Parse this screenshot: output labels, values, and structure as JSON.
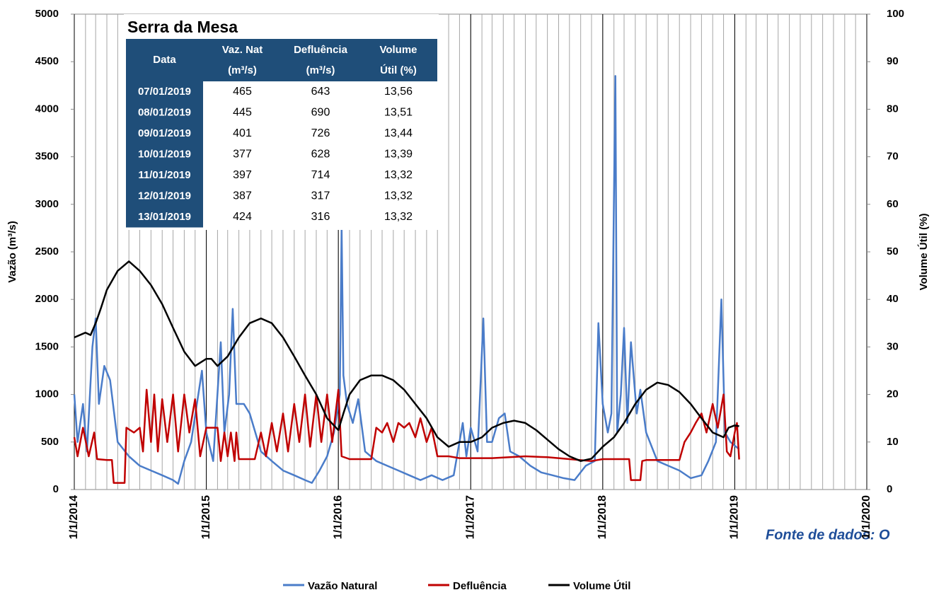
{
  "chart_data": {
    "type": "line",
    "y_label": "Vazão (m³/s)",
    "y2_label": "Volume Útil (%)",
    "source": "Fonte de dados: O",
    "xlim": [
      "2014-01-01",
      "2020-01-01"
    ],
    "xticks": [
      {
        "value": "2014-01-01",
        "label": "1/1/2014"
      },
      {
        "value": "2015-01-01",
        "label": "1/1/2015"
      },
      {
        "value": "2016-01-01",
        "label": "1/1/2016"
      },
      {
        "value": "2017-01-01",
        "label": "1/1/2017"
      },
      {
        "value": "2018-01-01",
        "label": "1/1/2018"
      },
      {
        "value": "2019-01-01",
        "label": "1/1/2019"
      },
      {
        "value": "2020-01-01",
        "label": "1/1/2020"
      }
    ],
    "ylim": [
      0,
      5000
    ],
    "yticks": [
      0,
      500,
      1000,
      1500,
      2000,
      2500,
      3000,
      3500,
      4000,
      4500,
      5000
    ],
    "y2lim": [
      0,
      100
    ],
    "y2ticks": [
      0,
      10,
      20,
      30,
      40,
      50,
      60,
      70,
      80,
      90,
      100
    ],
    "series": [
      {
        "name": "Vazão Natural",
        "color": "#4a7cc9",
        "x": [
          "2014-01-01",
          "2014-01-10",
          "2014-01-25",
          "2014-02-05",
          "2014-02-20",
          "2014-03-01",
          "2014-03-10",
          "2014-03-25",
          "2014-04-10",
          "2014-05-01",
          "2014-06-01",
          "2014-07-01",
          "2014-08-01",
          "2014-09-01",
          "2014-10-01",
          "2014-10-15",
          "2014-11-01",
          "2014-11-20",
          "2014-12-10",
          "2014-12-20",
          "2015-01-01",
          "2015-01-20",
          "2015-02-10",
          "2015-02-20",
          "2015-03-05",
          "2015-03-15",
          "2015-03-25",
          "2015-04-15",
          "2015-05-01",
          "2015-06-01",
          "2015-07-01",
          "2015-08-01",
          "2015-09-01",
          "2015-10-01",
          "2015-10-20",
          "2015-11-10",
          "2015-12-01",
          "2015-12-20",
          "2016-01-05",
          "2016-01-10",
          "2016-01-15",
          "2016-01-25",
          "2016-02-10",
          "2016-02-25",
          "2016-03-15",
          "2016-04-15",
          "2016-05-15",
          "2016-06-15",
          "2016-07-15",
          "2016-08-15",
          "2016-09-15",
          "2016-10-15",
          "2016-11-15",
          "2016-12-10",
          "2016-12-20",
          "2017-01-01",
          "2017-01-20",
          "2017-02-05",
          "2017-02-15",
          "2017-03-01",
          "2017-03-20",
          "2017-04-05",
          "2017-04-20",
          "2017-05-15",
          "2017-06-15",
          "2017-07-15",
          "2017-08-15",
          "2017-09-15",
          "2017-10-15",
          "2017-11-15",
          "2017-12-10",
          "2017-12-20",
          "2018-01-01",
          "2018-01-15",
          "2018-01-25",
          "2018-02-05",
          "2018-02-10",
          "2018-02-20",
          "2018-03-01",
          "2018-03-10",
          "2018-03-20",
          "2018-04-05",
          "2018-04-15",
          "2018-05-01",
          "2018-06-01",
          "2018-07-01",
          "2018-08-01",
          "2018-09-01",
          "2018-10-01",
          "2018-10-20",
          "2018-11-10",
          "2018-11-25",
          "2018-12-05",
          "2018-12-20",
          "2019-01-13"
        ],
        "values": [
          1000,
          500,
          900,
          400,
          1500,
          1800,
          900,
          1300,
          1150,
          500,
          350,
          250,
          200,
          150,
          100,
          60,
          300,
          500,
          1000,
          1250,
          600,
          300,
          1550,
          600,
          1000,
          1900,
          900,
          900,
          800,
          400,
          300,
          200,
          150,
          100,
          70,
          200,
          350,
          600,
          1000,
          2750,
          1200,
          900,
          700,
          950,
          400,
          300,
          250,
          200,
          150,
          100,
          150,
          100,
          150,
          700,
          350,
          650,
          400,
          1800,
          500,
          500,
          750,
          800,
          400,
          350,
          250,
          180,
          150,
          120,
          100,
          250,
          300,
          1750,
          900,
          600,
          800,
          4350,
          600,
          1000,
          1700,
          700,
          1550,
          800,
          1050,
          600,
          300,
          250,
          200,
          120,
          150,
          300,
          500,
          2000,
          600,
          500,
          424
        ]
      },
      {
        "name": "Defluência",
        "color": "#c00000",
        "x": [
          "2014-01-01",
          "2014-01-10",
          "2014-01-25",
          "2014-02-10",
          "2014-02-25",
          "2014-03-05",
          "2014-04-01",
          "2014-04-15",
          "2014-04-20",
          "2014-05-20",
          "2014-05-25",
          "2014-06-15",
          "2014-07-01",
          "2014-07-10",
          "2014-07-20",
          "2014-08-01",
          "2014-08-10",
          "2014-08-20",
          "2014-09-01",
          "2014-09-15",
          "2014-10-01",
          "2014-10-15",
          "2014-11-01",
          "2014-11-15",
          "2014-12-01",
          "2014-12-15",
          "2015-01-01",
          "2015-01-15",
          "2015-02-01",
          "2015-02-10",
          "2015-02-20",
          "2015-03-01",
          "2015-03-10",
          "2015-03-20",
          "2015-03-25",
          "2015-04-01",
          "2015-05-15",
          "2015-06-01",
          "2015-06-15",
          "2015-07-01",
          "2015-07-15",
          "2015-08-01",
          "2015-08-15",
          "2015-09-01",
          "2015-09-15",
          "2015-10-01",
          "2015-10-15",
          "2015-11-01",
          "2015-11-15",
          "2015-12-01",
          "2015-12-15",
          "2016-01-01",
          "2016-01-10",
          "2016-02-01",
          "2016-03-01",
          "2016-04-01",
          "2016-04-15",
          "2016-05-01",
          "2016-05-15",
          "2016-06-01",
          "2016-06-15",
          "2016-07-01",
          "2016-07-15",
          "2016-08-01",
          "2016-08-15",
          "2016-09-01",
          "2016-09-15",
          "2016-10-01",
          "2016-11-01",
          "2016-12-01",
          "2017-03-01",
          "2017-06-01",
          "2017-08-01",
          "2017-12-01",
          "2018-01-01",
          "2018-03-15",
          "2018-03-20",
          "2018-04-15",
          "2018-04-20",
          "2018-05-01",
          "2018-08-01",
          "2018-08-15",
          "2018-09-01",
          "2018-09-15",
          "2018-10-01",
          "2018-10-15",
          "2018-11-01",
          "2018-11-15",
          "2018-12-01",
          "2018-12-10",
          "2018-12-20",
          "2019-01-01",
          "2019-01-07",
          "2019-01-13"
        ],
        "values": [
          550,
          350,
          650,
          350,
          600,
          320,
          310,
          310,
          70,
          70,
          650,
          600,
          650,
          400,
          1050,
          500,
          1000,
          400,
          950,
          500,
          1000,
          400,
          1000,
          600,
          950,
          350,
          650,
          650,
          650,
          300,
          600,
          350,
          600,
          300,
          600,
          320,
          320,
          600,
          350,
          700,
          400,
          800,
          400,
          900,
          500,
          1000,
          450,
          1000,
          500,
          1000,
          500,
          1050,
          350,
          320,
          320,
          320,
          650,
          600,
          700,
          500,
          700,
          650,
          700,
          550,
          750,
          500,
          650,
          350,
          350,
          330,
          330,
          350,
          340,
          300,
          320,
          320,
          100,
          100,
          300,
          310,
          310,
          500,
          600,
          700,
          800,
          600,
          900,
          650,
          1000,
          400,
          350,
          600,
          700,
          316
        ]
      },
      {
        "name": "Volume Útil",
        "color": "#000000",
        "axis": "y2",
        "x": [
          "2014-01-01",
          "2014-02-01",
          "2014-02-15",
          "2014-03-01",
          "2014-03-15",
          "2014-04-01",
          "2014-05-01",
          "2014-06-01",
          "2014-07-01",
          "2014-08-01",
          "2014-09-01",
          "2014-10-01",
          "2014-11-01",
          "2014-12-01",
          "2015-01-01",
          "2015-01-15",
          "2015-02-01",
          "2015-03-01",
          "2015-04-01",
          "2015-05-01",
          "2015-06-01",
          "2015-07-01",
          "2015-08-01",
          "2015-09-01",
          "2015-10-01",
          "2015-11-01",
          "2015-12-01",
          "2016-01-01",
          "2016-01-15",
          "2016-02-01",
          "2016-03-01",
          "2016-04-01",
          "2016-05-01",
          "2016-06-01",
          "2016-07-01",
          "2016-08-01",
          "2016-09-01",
          "2016-10-01",
          "2016-11-01",
          "2016-12-01",
          "2017-01-01",
          "2017-02-01",
          "2017-03-01",
          "2017-04-01",
          "2017-05-01",
          "2017-06-01",
          "2017-07-01",
          "2017-08-01",
          "2017-09-01",
          "2017-10-01",
          "2017-11-01",
          "2017-12-01",
          "2018-01-01",
          "2018-02-01",
          "2018-03-01",
          "2018-04-01",
          "2018-05-01",
          "2018-06-01",
          "2018-07-01",
          "2018-08-01",
          "2018-09-01",
          "2018-10-01",
          "2018-11-01",
          "2018-12-01",
          "2018-12-15",
          "2019-01-01",
          "2019-01-13"
        ],
        "values": [
          32,
          33,
          32.5,
          35,
          38,
          42,
          46,
          48,
          46,
          43,
          39,
          34,
          29,
          26,
          27.5,
          27.5,
          26,
          28,
          32,
          35,
          36,
          35,
          32,
          28,
          24,
          20,
          15,
          12.5,
          16,
          20,
          23,
          24,
          24,
          23,
          21,
          18,
          15,
          11,
          9,
          10,
          10,
          11,
          13,
          14,
          14.5,
          14,
          12.5,
          10.5,
          8.5,
          7,
          6,
          6.5,
          9,
          11,
          14,
          18,
          21,
          22.5,
          22,
          20.5,
          18,
          15,
          12,
          11,
          13,
          13.5,
          13.32
        ]
      }
    ],
    "table": {
      "title": "Serra da Mesa",
      "columns": [
        [
          "Data"
        ],
        [
          "Vaz. Nat",
          "(m³/s)"
        ],
        [
          "Defluência",
          "(m³/s)"
        ],
        [
          "Volume",
          "Útil (%)"
        ]
      ],
      "rows": [
        [
          "07/01/2019",
          465,
          643,
          "13,56"
        ],
        [
          "08/01/2019",
          445,
          690,
          "13,51"
        ],
        [
          "09/01/2019",
          401,
          726,
          "13,44"
        ],
        [
          "10/01/2019",
          377,
          628,
          "13,39"
        ],
        [
          "11/01/2019",
          397,
          714,
          "13,32"
        ],
        [
          "12/01/2019",
          387,
          317,
          "13,32"
        ],
        [
          "13/01/2019",
          424,
          316,
          "13,32"
        ]
      ]
    }
  }
}
